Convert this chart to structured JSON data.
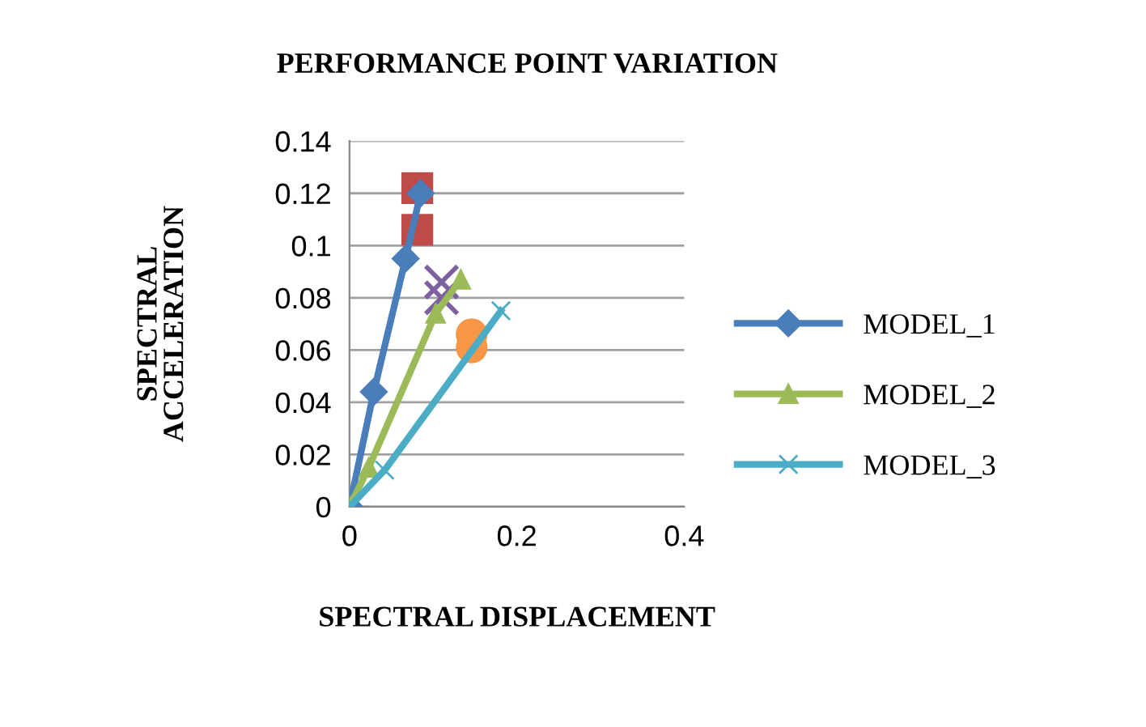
{
  "chart_data": {
    "type": "line",
    "title": "PERFORMANCE POINT VARIATION",
    "xlabel": "SPECTRAL DISPLACEMENT",
    "ylabel": "SPECTRAL\nACCELERATION",
    "xlim": [
      0,
      0.4
    ],
    "xticks": [
      0,
      0.2,
      0.4
    ],
    "ylim": [
      0,
      0.14
    ],
    "yticks": [
      0,
      0.02,
      0.04,
      0.06,
      0.08,
      {
        "value": 0.1,
        "label": "0.1"
      },
      0.12,
      0.14
    ],
    "grid": "y",
    "legend": "right",
    "line_style": "solid",
    "series": [
      {
        "name": "MODEL_1",
        "marker": "diamond",
        "color": "#4a7ebb",
        "x": [
          0,
          0.029,
          0.067,
          0.085
        ],
        "values": [
          0,
          0.044,
          0.095,
          0.12
        ]
      },
      {
        "name": "MODEL_2",
        "marker": "triangle",
        "color": "#9bbb59",
        "x": [
          0,
          0.023,
          0.103,
          0.133
        ],
        "values": [
          0,
          0.015,
          0.074,
          0.087
        ]
      },
      {
        "name": "MODEL_3",
        "marker": "cross",
        "color": "#4bacc6",
        "x": [
          0,
          0.042,
          0.181
        ],
        "values": [
          0,
          0.014,
          0.075
        ]
      },
      {
        "type": "scatter",
        "marker": "square",
        "color": "#be4b48",
        "x": [
          0.081,
          0.081
        ],
        "values": [
          0.122,
          0.106
        ]
      },
      {
        "type": "scatter",
        "marker": "cross",
        "color": "#7d60a0",
        "x": [
          0.11,
          0.11
        ],
        "values": [
          0.086,
          0.08
        ]
      },
      {
        "type": "scatter",
        "marker": "circle",
        "color": "#f79646",
        "x": [
          0.146,
          0.146
        ],
        "values": [
          0.066,
          0.061
        ]
      }
    ]
  }
}
